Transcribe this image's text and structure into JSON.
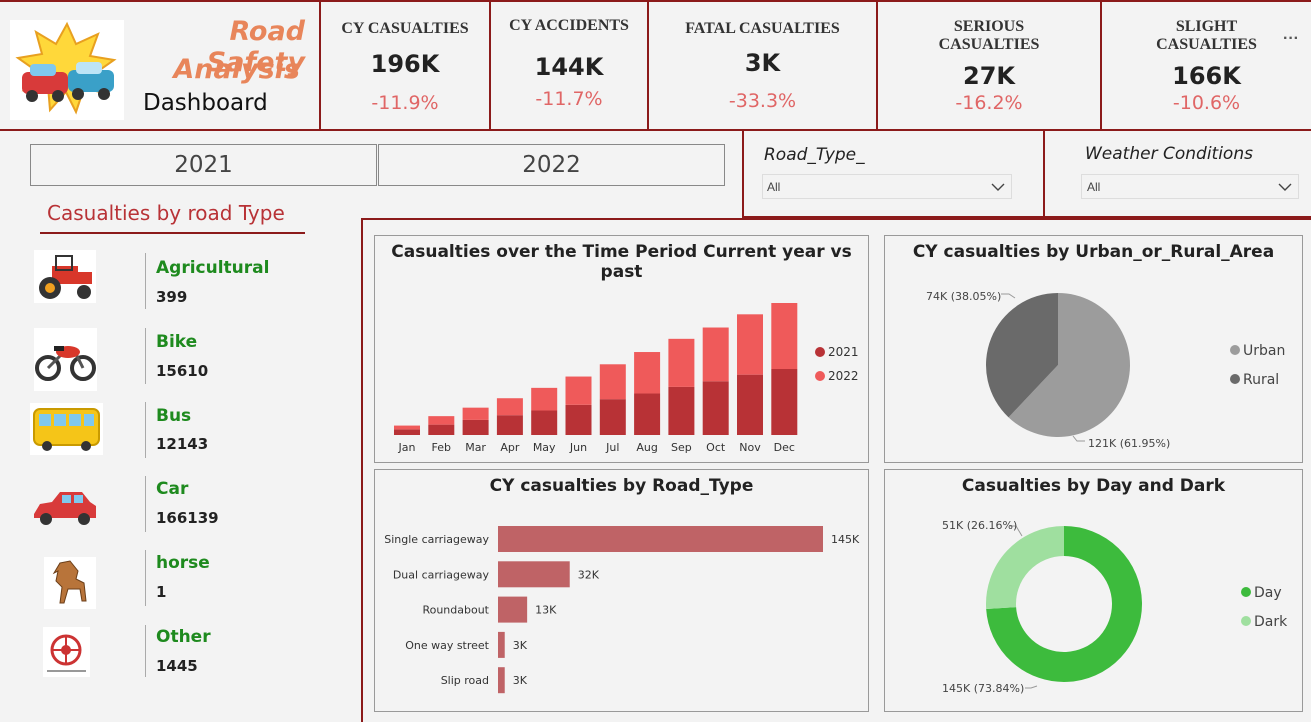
{
  "header": {
    "title_line1": "Road Safety",
    "title_line2": "Analysis",
    "subtitle": "Dashboard",
    "more_label": "···"
  },
  "kpis": [
    {
      "title": "CY CASUALTIES",
      "value": "196K",
      "change": "-11.9%"
    },
    {
      "title": "CY ACCIDENTS",
      "value": "144K",
      "change": "-11.7%"
    },
    {
      "title": "FATAL CASUALTIES",
      "value": "3K",
      "change": "-33.3%"
    },
    {
      "title_l1": "SERIOUS",
      "title_l2": "CASUALTIES",
      "value": "27K",
      "change": "-16.2%"
    },
    {
      "title_l1": "SLIGHT",
      "title_l2": "CASUALTIES",
      "value": "166K",
      "change": "-10.6%"
    }
  ],
  "year_buttons": [
    "2021",
    "2022"
  ],
  "filters": {
    "road_type": {
      "label": "Road_Type_",
      "value": "All"
    },
    "weather": {
      "label": "Weather Conditions",
      "value": "All"
    }
  },
  "casualties_by_road_type": {
    "title": "Casualties by road Type",
    "items": [
      {
        "name": "Agricultural",
        "value": "399",
        "icon": "tractor-icon"
      },
      {
        "name": "Bike",
        "value": "15610",
        "icon": "motorbike-icon"
      },
      {
        "name": "Bus",
        "value": "12143",
        "icon": "bus-icon"
      },
      {
        "name": "Car",
        "value": "166139",
        "icon": "car-icon"
      },
      {
        "name": "horse",
        "value": "1",
        "icon": "horse-icon"
      },
      {
        "name": "Other",
        "value": "1445",
        "icon": "other-vehicle-icon"
      }
    ]
  },
  "colors": {
    "accent": "#e8855a",
    "border": "#8b1a1a",
    "green": "#1e8a1e",
    "red_2021": "#b83236",
    "red_2022": "#ef5a5a",
    "bar": "#bf6366",
    "urban": "#9c9c9c",
    "rural": "#6a6a6a",
    "day": "#3dbb3d",
    "dark": "#9fdf9f"
  },
  "chart_data": [
    {
      "type": "bar",
      "stacked": true,
      "title": "Casualties over the Time Period Current year vs past",
      "categories": [
        "Jan",
        "Feb",
        "Mar",
        "Apr",
        "May",
        "Jun",
        "Jul",
        "Aug",
        "Sep",
        "Oct",
        "Nov",
        "Dec"
      ],
      "series": [
        {
          "name": "2021",
          "values": [
            6,
            11,
            16,
            21,
            26,
            32,
            38,
            44,
            51,
            57,
            64,
            70
          ]
        },
        {
          "name": "2022",
          "values": [
            4,
            9,
            13,
            18,
            24,
            30,
            37,
            44,
            51,
            57,
            64,
            70
          ]
        }
      ],
      "legend": "right"
    },
    {
      "type": "pie",
      "title": "CY casualties by Urban_or_Rural_Area",
      "slices": [
        {
          "name": "Urban",
          "value": 121,
          "label": "121K (61.95%)"
        },
        {
          "name": "Rural",
          "value": 74,
          "label": "74K (38.05%)"
        }
      ],
      "legend": "right"
    },
    {
      "type": "bar",
      "orientation": "horizontal",
      "title": "CY casualties by Road_Type",
      "categories": [
        "Single carriageway",
        "Dual carriageway",
        "Roundabout",
        "One way street",
        "Slip road"
      ],
      "values": [
        145,
        32,
        13,
        3,
        3
      ],
      "value_labels": [
        "145K",
        "32K",
        "13K",
        "3K",
        "3K"
      ]
    },
    {
      "type": "pie",
      "donut": true,
      "title": "Casualties by Day and Dark",
      "slices": [
        {
          "name": "Day",
          "value": 145,
          "label": "145K (73.84%)"
        },
        {
          "name": "Dark",
          "value": 51,
          "label": "51K (26.16%)"
        }
      ],
      "legend": "right"
    }
  ]
}
